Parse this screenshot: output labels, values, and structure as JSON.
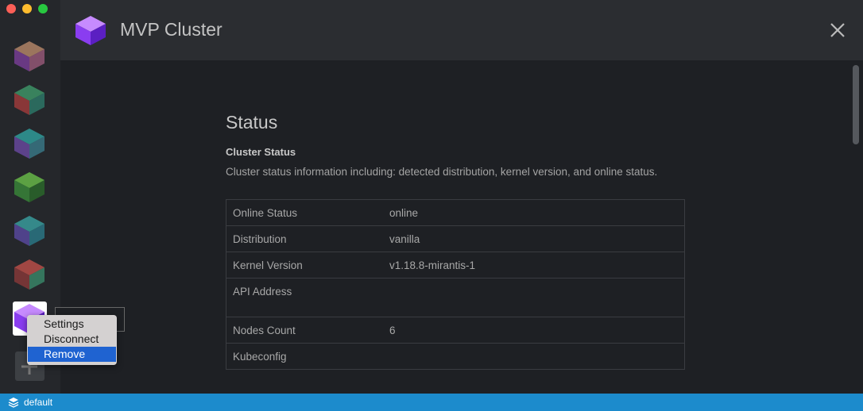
{
  "header": {
    "title": "MVP Cluster"
  },
  "section": {
    "title": "Status",
    "subtitle": "Cluster Status",
    "description": "Cluster status information including: detected distribution, kernel version, and online status."
  },
  "table": {
    "rows": [
      [
        "Online Status",
        "online"
      ],
      [
        "Distribution",
        "vanilla"
      ],
      [
        "Kernel Version",
        "v1.18.8-mirantis-1"
      ],
      [
        "API Address"
      ],
      [
        "Nodes Count",
        "6"
      ],
      [
        "Kubeconfig"
      ]
    ]
  },
  "context_menu": {
    "items": [
      "Settings",
      "Disconnect",
      "Remove"
    ]
  },
  "status_bar": {
    "workspace": "default"
  }
}
